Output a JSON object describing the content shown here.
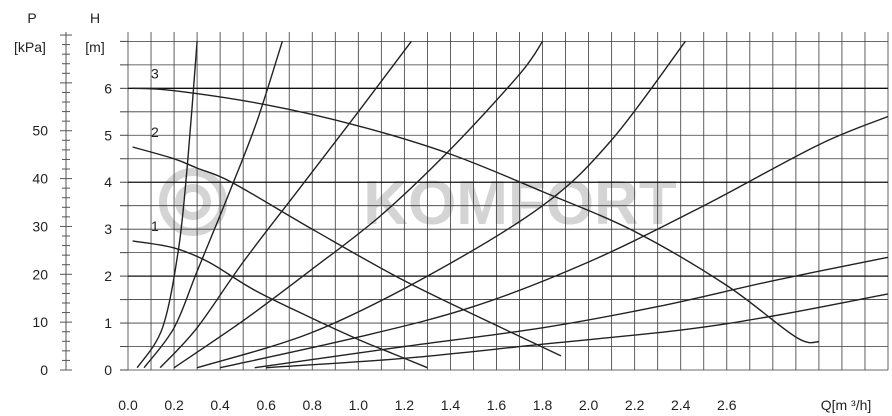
{
  "chart_data": {
    "type": "line",
    "title": "",
    "watermark": "KOMFORT",
    "xlabel": "Q[m ³/h]",
    "ylabel_left": "P",
    "ylabel_left_unit": "[kPa]",
    "ylabel_right": "H",
    "ylabel_right_unit": "[m]",
    "xlim": [
      0,
      3.3
    ],
    "ylim": [
      0,
      7.2
    ],
    "x_ticks": [
      "0.0",
      "0.2",
      "0.4",
      "0.6",
      "0.8",
      "1.0",
      "1.2",
      "1.4",
      "1.6",
      "1.8",
      "2.0",
      "2.2",
      "2.4",
      "2.6"
    ],
    "y_ticks_m": [
      "0",
      "1",
      "2",
      "3",
      "4",
      "5",
      "6"
    ],
    "y_ticks_kpa": [
      "0",
      "10",
      "20",
      "30",
      "40",
      "50"
    ],
    "grid": true,
    "colors": {
      "line": "#222222",
      "grid": "#3a3a3a",
      "major_grid": "#111111",
      "watermark": "#d4d4d4"
    },
    "series": [
      {
        "name": "1",
        "points": [
          [
            0.02,
            2.75
          ],
          [
            0.2,
            2.6
          ],
          [
            0.35,
            2.3
          ],
          [
            0.55,
            1.7
          ],
          [
            0.8,
            1.1
          ],
          [
            1.0,
            0.65
          ],
          [
            1.15,
            0.35
          ],
          [
            1.3,
            0.05
          ]
        ]
      },
      {
        "name": "2",
        "points": [
          [
            0.02,
            4.75
          ],
          [
            0.2,
            4.5
          ],
          [
            0.3,
            4.3
          ],
          [
            0.45,
            4.0
          ],
          [
            0.8,
            3.0
          ],
          [
            1.2,
            1.9
          ],
          [
            1.6,
            0.95
          ],
          [
            1.88,
            0.3
          ]
        ]
      },
      {
        "name": "3",
        "points": [
          [
            0.02,
            6.0
          ],
          [
            0.2,
            5.95
          ],
          [
            0.6,
            5.65
          ],
          [
            1.0,
            5.2
          ],
          [
            1.4,
            4.6
          ],
          [
            1.8,
            3.8
          ],
          [
            2.2,
            2.95
          ],
          [
            2.6,
            1.8
          ],
          [
            2.9,
            0.7
          ],
          [
            3.0,
            0.6
          ]
        ]
      }
    ],
    "system_curves": [
      {
        "points": [
          [
            0.04,
            0.05
          ],
          [
            0.15,
            0.9
          ],
          [
            0.22,
            2.6
          ],
          [
            0.26,
            4.5
          ],
          [
            0.3,
            7.0
          ]
        ]
      },
      {
        "points": [
          [
            0.07,
            0.05
          ],
          [
            0.2,
            0.9
          ],
          [
            0.3,
            2.1
          ],
          [
            0.45,
            3.9
          ],
          [
            0.56,
            5.3
          ],
          [
            0.67,
            7.0
          ]
        ]
      },
      {
        "points": [
          [
            0.14,
            0.05
          ],
          [
            0.3,
            0.9
          ],
          [
            0.5,
            2.3
          ],
          [
            0.75,
            3.9
          ],
          [
            1.0,
            5.5
          ],
          [
            1.23,
            7.0
          ]
        ]
      },
      {
        "points": [
          [
            0.2,
            0.05
          ],
          [
            0.5,
            1.05
          ],
          [
            0.8,
            2.15
          ],
          [
            1.1,
            3.3
          ],
          [
            1.4,
            4.7
          ],
          [
            1.7,
            6.3
          ],
          [
            1.8,
            7.0
          ]
        ]
      },
      {
        "points": [
          [
            0.3,
            0.05
          ],
          [
            0.8,
            0.8
          ],
          [
            1.3,
            2.0
          ],
          [
            1.8,
            3.5
          ],
          [
            2.1,
            4.9
          ],
          [
            2.42,
            7.0
          ]
        ]
      },
      {
        "points": [
          [
            0.4,
            0.05
          ],
          [
            1.0,
            0.7
          ],
          [
            1.5,
            1.35
          ],
          [
            2.0,
            2.3
          ],
          [
            2.5,
            3.5
          ],
          [
            3.0,
            4.8
          ],
          [
            3.3,
            5.4
          ]
        ]
      },
      {
        "points": [
          [
            0.55,
            0.05
          ],
          [
            1.2,
            0.5
          ],
          [
            1.8,
            0.9
          ],
          [
            2.3,
            1.35
          ],
          [
            2.8,
            1.9
          ],
          [
            3.3,
            2.4
          ]
        ]
      },
      {
        "points": [
          [
            0.6,
            0.05
          ],
          [
            1.2,
            0.25
          ],
          [
            1.8,
            0.55
          ],
          [
            2.4,
            0.85
          ],
          [
            2.8,
            1.15
          ],
          [
            3.3,
            1.62
          ]
        ]
      }
    ]
  }
}
